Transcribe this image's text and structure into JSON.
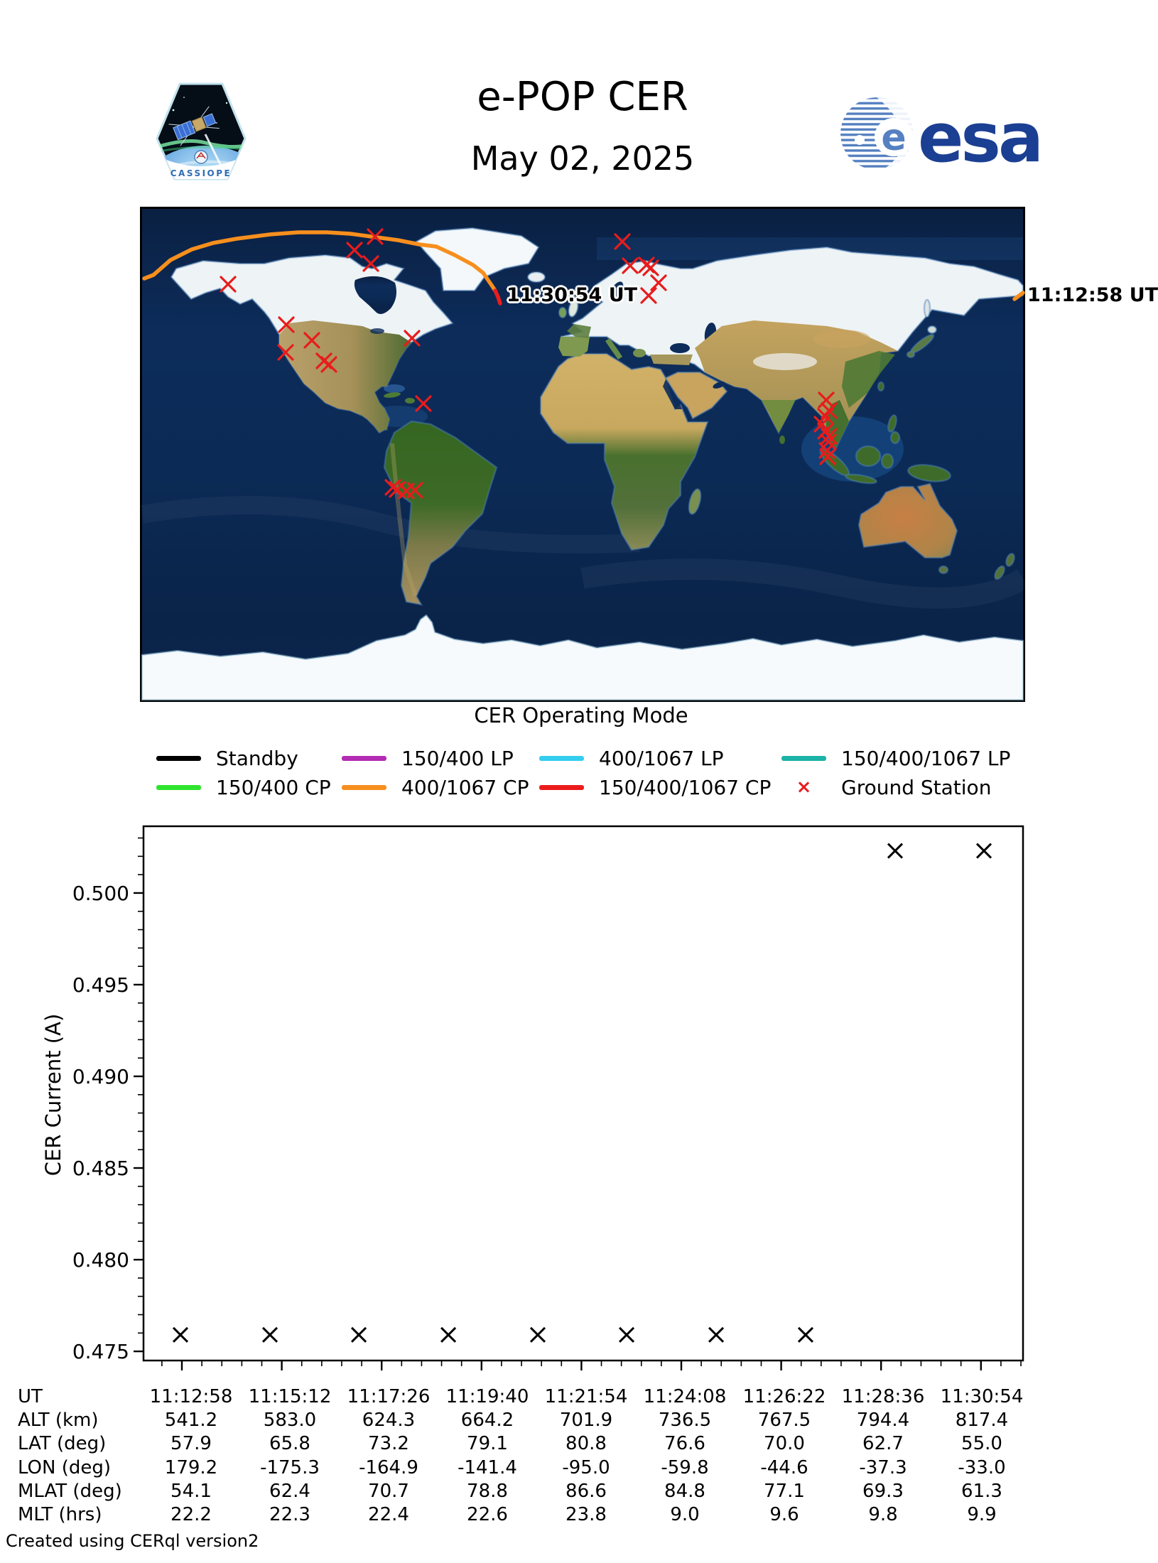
{
  "header": {
    "title": "e-POP CER",
    "date": "May 02, 2025",
    "esa_wordmark": "esa",
    "patch_text": "CASSIOPE"
  },
  "map": {
    "end_time_label": "11:30:54 UT",
    "start_time_label": "11:12:58 UT",
    "ground_station_color": "#e81c1c",
    "track": {
      "segments": [
        {
          "mode": "400-1067-CP",
          "color": "#f78f1e",
          "points": [
            [
              3,
              98
            ],
            [
              16,
              93
            ],
            [
              40,
              72
            ],
            [
              70,
              57
            ],
            [
              100,
              48
            ],
            [
              133,
              42
            ],
            [
              180,
              36
            ],
            [
              220,
              33
            ],
            [
              260,
              33
            ],
            [
              293,
              35
            ],
            [
              330,
              40
            ],
            [
              360,
              44
            ],
            [
              390,
              50
            ],
            [
              414,
              53
            ],
            [
              440,
              65
            ],
            [
              466,
              79
            ],
            [
              480,
              90
            ],
            [
              491,
              106
            ],
            [
              497,
              115
            ]
          ]
        },
        {
          "mode": "150-400-1067-CP",
          "color": "#ec1c1c",
          "points": [
            [
              497,
              115
            ],
            [
              501,
              124
            ],
            [
              504,
              133
            ]
          ]
        },
        {
          "mode": "400-1067-CP-edge-stub",
          "color": "#f78f1e",
          "points": [
            [
              1228,
              127
            ],
            [
              1240,
              118
            ]
          ]
        }
      ]
    },
    "ground_stations": [
      [
        328,
        39
      ],
      [
        299,
        58
      ],
      [
        322,
        77
      ],
      [
        121,
        106
      ],
      [
        203,
        163
      ],
      [
        239,
        185
      ],
      [
        202,
        202
      ],
      [
        256,
        214
      ],
      [
        263,
        219
      ],
      [
        380,
        182
      ],
      [
        396,
        274
      ],
      [
        353,
        392
      ],
      [
        359,
        395
      ],
      [
        372,
        397
      ],
      [
        384,
        396
      ],
      [
        676,
        46
      ],
      [
        687,
        80
      ],
      [
        710,
        79
      ],
      [
        716,
        83
      ],
      [
        727,
        104
      ],
      [
        713,
        122
      ],
      [
        963,
        269
      ],
      [
        967,
        284
      ],
      [
        962,
        292
      ],
      [
        957,
        303
      ],
      [
        962,
        313
      ],
      [
        967,
        320
      ],
      [
        966,
        328
      ],
      [
        964,
        340
      ],
      [
        965,
        349
      ]
    ]
  },
  "legend": {
    "title": "CER Operating Mode",
    "rows": [
      [
        {
          "label": "Standby",
          "color": "#000000",
          "swatch": "line"
        },
        {
          "label": "150/400 LP",
          "color": "#b42bb4",
          "swatch": "line"
        },
        {
          "label": "400/1067 LP",
          "color": "#33cdf0",
          "swatch": "line"
        },
        {
          "label": "150/400/1067 LP",
          "color": "#1db2a7",
          "swatch": "line"
        }
      ],
      [
        {
          "label": "150/400 CP",
          "color": "#2fe42f",
          "swatch": "line"
        },
        {
          "label": "400/1067 CP",
          "color": "#f78f1e",
          "swatch": "line"
        },
        {
          "label": "150/400/1067 CP",
          "color": "#ec1c1c",
          "swatch": "line"
        },
        {
          "label": "Ground Station",
          "color": "#e81c1c",
          "swatch": "cross",
          "glyph": "×"
        }
      ]
    ]
  },
  "chart_data": {
    "type": "scatter",
    "ylabel": "CER Current (A)",
    "marker": "x",
    "ylim": [
      0.4745,
      0.50364
    ],
    "ytick_labels": [
      "0.475",
      "0.480",
      "0.485",
      "0.490",
      "0.495",
      "0.500"
    ],
    "ytick_values": [
      0.475,
      0.48,
      0.485,
      0.49,
      0.495,
      0.5
    ],
    "x_categories": [
      "11:12:58",
      "11:15:12",
      "11:17:26",
      "11:19:40",
      "11:21:54",
      "11:24:08",
      "11:26:22",
      "11:28:36",
      "11:30:54"
    ],
    "points": [
      {
        "x_frac": 0.042,
        "amps": 0.4759
      },
      {
        "x_frac": 0.1438,
        "amps": 0.4759
      },
      {
        "x_frac": 0.2448,
        "amps": 0.4759
      },
      {
        "x_frac": 0.3466,
        "amps": 0.4759
      },
      {
        "x_frac": 0.4483,
        "amps": 0.4759
      },
      {
        "x_frac": 0.5493,
        "amps": 0.4759
      },
      {
        "x_frac": 0.6511,
        "amps": 0.4759
      },
      {
        "x_frac": 0.7528,
        "amps": 0.4759
      },
      {
        "x_frac": 0.8546,
        "amps": 0.5023
      },
      {
        "x_frac": 0.9556,
        "amps": 0.5023
      }
    ]
  },
  "table": {
    "rows": [
      {
        "label": "UT",
        "values": [
          "11:12:58",
          "11:15:12",
          "11:17:26",
          "11:19:40",
          "11:21:54",
          "11:24:08",
          "11:26:22",
          "11:28:36",
          "11:30:54"
        ]
      },
      {
        "label": "ALT (km)",
        "values": [
          "541.2",
          "583.0",
          "624.3",
          "664.2",
          "701.9",
          "736.5",
          "767.5",
          "794.4",
          "817.4"
        ]
      },
      {
        "label": "LAT (deg)",
        "values": [
          "57.9",
          "65.8",
          "73.2",
          "79.1",
          "80.8",
          "76.6",
          "70.0",
          "62.7",
          "55.0"
        ]
      },
      {
        "label": "LON (deg)",
        "values": [
          "179.2",
          "-175.3",
          "-164.9",
          "-141.4",
          "-95.0",
          "-59.8",
          "-44.6",
          "-37.3",
          "-33.0"
        ]
      },
      {
        "label": "MLAT (deg)",
        "values": [
          "54.1",
          "62.4",
          "70.7",
          "78.8",
          "86.6",
          "84.8",
          "77.1",
          "69.3",
          "61.3"
        ]
      },
      {
        "label": "MLT (hrs)",
        "values": [
          "22.2",
          "22.3",
          "22.4",
          "22.6",
          "23.8",
          "9.0",
          "9.6",
          "9.8",
          "9.9"
        ]
      }
    ]
  },
  "footer": {
    "credit": "Created using CERql version2"
  }
}
